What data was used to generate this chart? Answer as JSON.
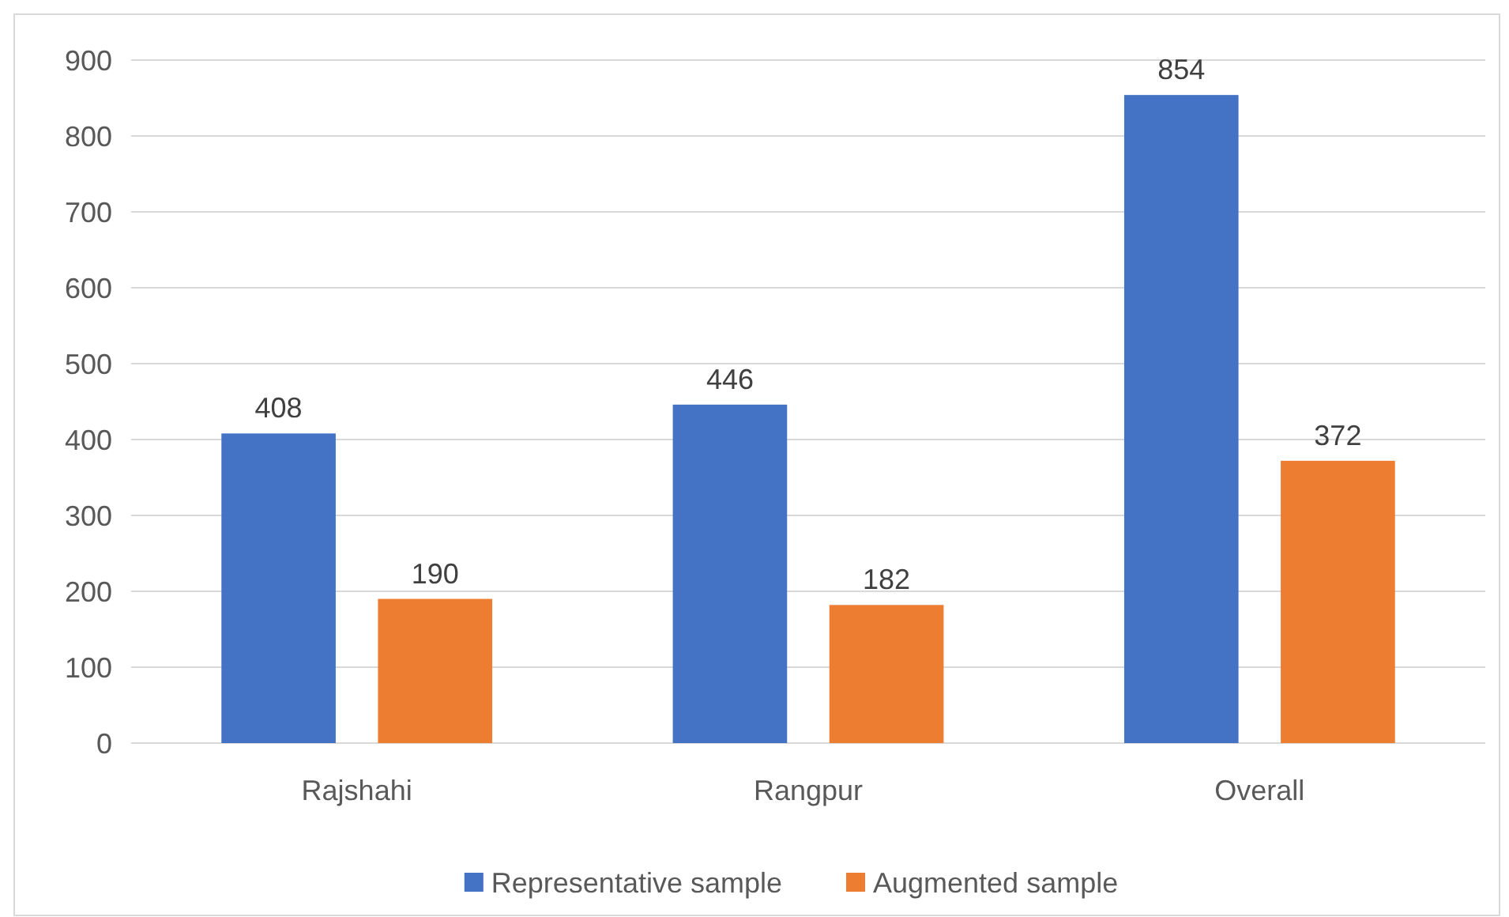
{
  "chart_data": {
    "type": "bar",
    "categories": [
      "Rajshahi",
      "Rangpur",
      "Overall"
    ],
    "series": [
      {
        "name": "Representative sample",
        "color": "#4472c4",
        "values": [
          408,
          446,
          854
        ]
      },
      {
        "name": "Augmented sample",
        "color": "#ed7d31",
        "values": [
          190,
          182,
          372
        ]
      }
    ],
    "ylim": [
      0,
      900
    ],
    "yticks": [
      0,
      100,
      200,
      300,
      400,
      500,
      600,
      700,
      800,
      900
    ],
    "grid": "y",
    "legend": "bottom",
    "data_labels": true
  }
}
